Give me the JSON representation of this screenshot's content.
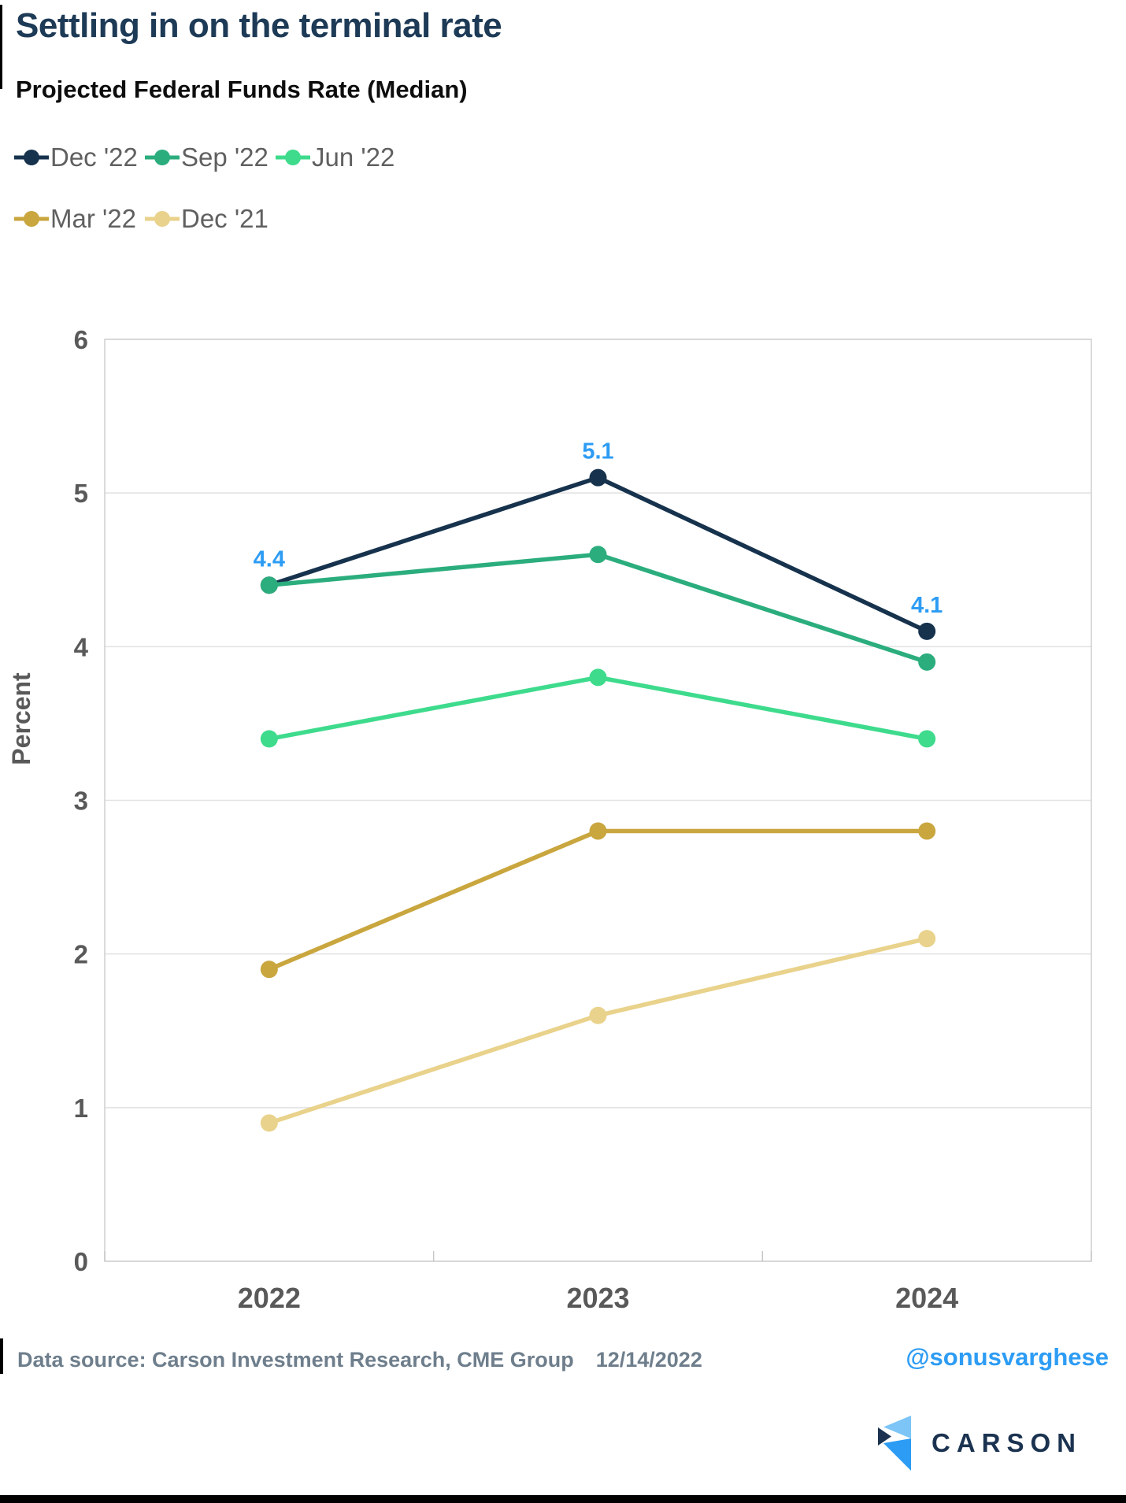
{
  "header": {
    "title": "Settling in on the terminal rate"
  },
  "chart_data": {
    "type": "line",
    "title": "Projected Federal Funds Rate (Median)",
    "categories": [
      "2022",
      "2023",
      "2024"
    ],
    "series": [
      {
        "name": "Dec '22",
        "color": "#16324d",
        "values": [
          4.4,
          5.1,
          4.1
        ],
        "point_labels": [
          "4.4",
          "5.1",
          "4.1"
        ]
      },
      {
        "name": "Sep '22",
        "color": "#2bad7d",
        "values": [
          4.4,
          4.6,
          3.9
        ]
      },
      {
        "name": "Jun '22",
        "color": "#3edb8d",
        "values": [
          3.4,
          3.8,
          3.4
        ]
      },
      {
        "name": "Mar '22",
        "color": "#c9a63e",
        "values": [
          1.9,
          2.8,
          2.8
        ]
      },
      {
        "name": "Dec '21",
        "color": "#e9d28b",
        "values": [
          0.9,
          1.6,
          2.1
        ]
      }
    ],
    "xlabel": "",
    "ylabel": "Percent",
    "ylim": [
      0,
      6
    ],
    "yticks": [
      "0",
      "1",
      "2",
      "3",
      "4",
      "5",
      "6"
    ],
    "grid": true,
    "legend_position": "top-left",
    "point_label_color": "#2d9cf4"
  },
  "footer": {
    "source": "Data source: Carson Investment Research, CME Group",
    "date": "12/14/2022",
    "handle": "@sonusvarghese",
    "brand": "CARSON"
  },
  "colors": {
    "title": "#1d3a56",
    "subtitle": "#0d0d0d",
    "legend_text": "#606060",
    "axis_text": "#595959",
    "gridline": "#e1e1e1",
    "footer_text": "#6e7e8c",
    "handle_blue": "#2d9cf4",
    "logo_light_blue": "#7cc5f6",
    "logo_mid_blue": "#2d9cf4",
    "logo_navy": "#1b3350"
  }
}
